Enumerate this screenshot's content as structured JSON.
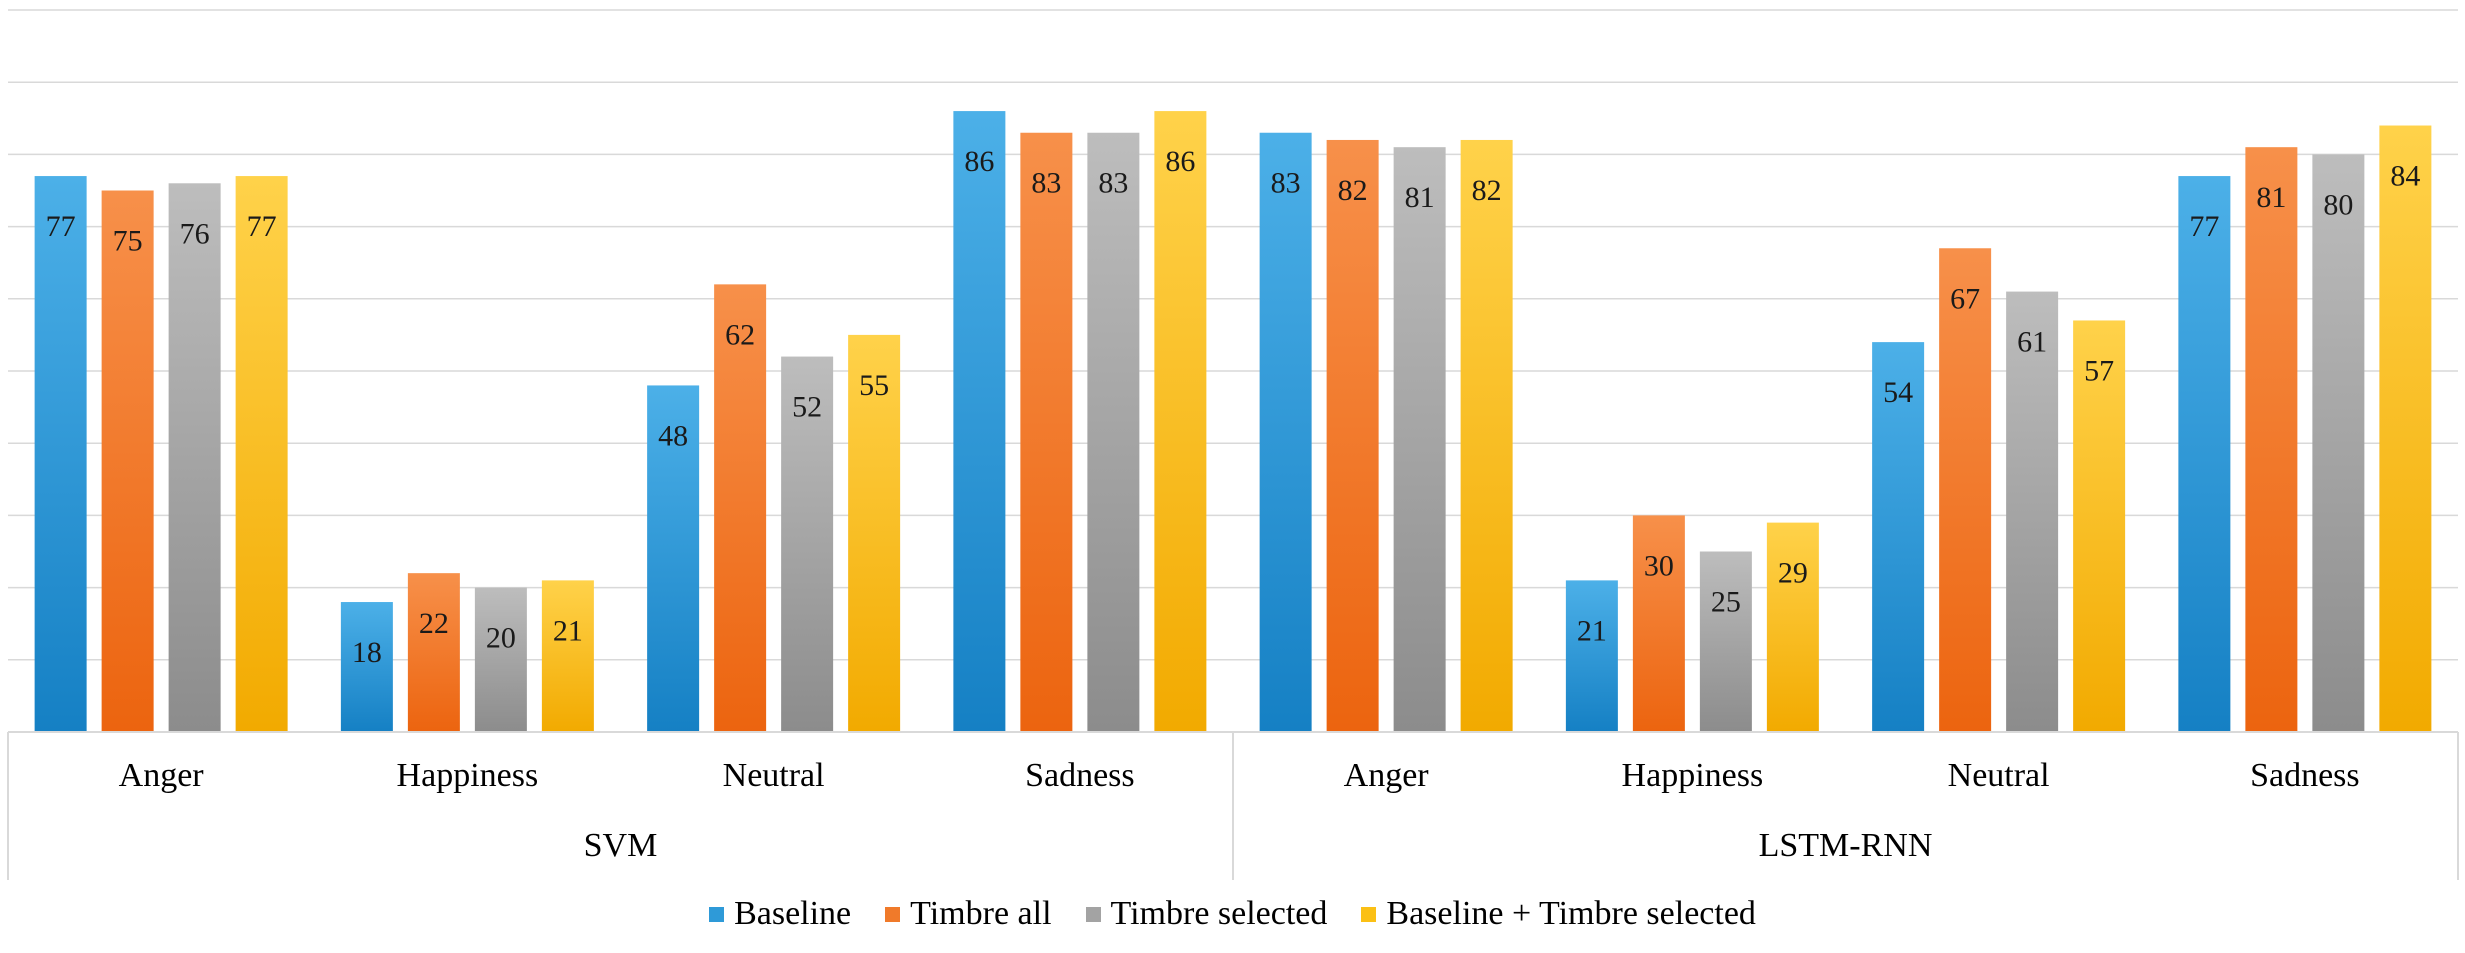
{
  "chart_data": {
    "type": "bar",
    "title": "",
    "xlabel": "",
    "ylabel": "",
    "ylim": [
      0,
      100
    ],
    "grid": true,
    "legend_position": "bottom",
    "groups": [
      {
        "name": "SVM",
        "categories": [
          "Anger",
          "Happiness",
          "Neutral",
          "Sadness"
        ]
      },
      {
        "name": "LSTM-RNN",
        "categories": [
          "Anger",
          "Happiness",
          "Neutral",
          "Sadness"
        ]
      }
    ],
    "series": [
      {
        "name": "Baseline",
        "color": "#2e9ad8",
        "values": [
          77,
          18,
          48,
          86,
          83,
          21,
          54,
          77
        ]
      },
      {
        "name": "Timbre all",
        "color": "#f07a2a",
        "values": [
          75,
          22,
          62,
          83,
          82,
          30,
          67,
          81
        ]
      },
      {
        "name": "Timbre selected",
        "color": "#a3a3a3",
        "values": [
          76,
          20,
          52,
          83,
          81,
          25,
          61,
          80
        ]
      },
      {
        "name": "Baseline + Timbre selected",
        "color": "#fbc015",
        "values": [
          77,
          21,
          55,
          86,
          82,
          29,
          57,
          84
        ]
      }
    ]
  }
}
